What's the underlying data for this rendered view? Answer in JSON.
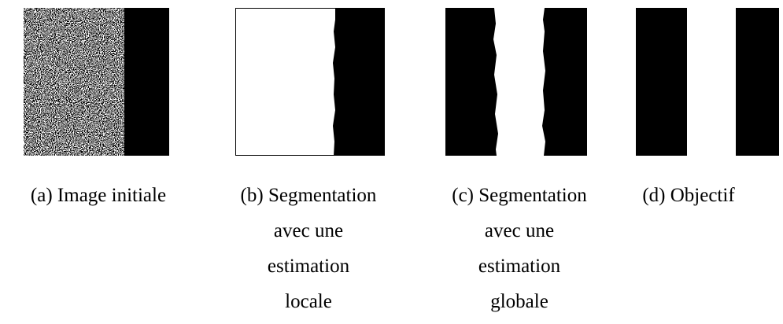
{
  "figures": [
    {
      "caption_lines": [
        "(a) Image initiale"
      ]
    },
    {
      "caption_lines": [
        "(b) Segmentation",
        "avec une",
        "estimation",
        "locale"
      ]
    },
    {
      "caption_lines": [
        "(c) Segmentation",
        "avec une",
        "estimation",
        "globale"
      ]
    },
    {
      "caption_lines": [
        "(d) Objectif"
      ]
    }
  ]
}
